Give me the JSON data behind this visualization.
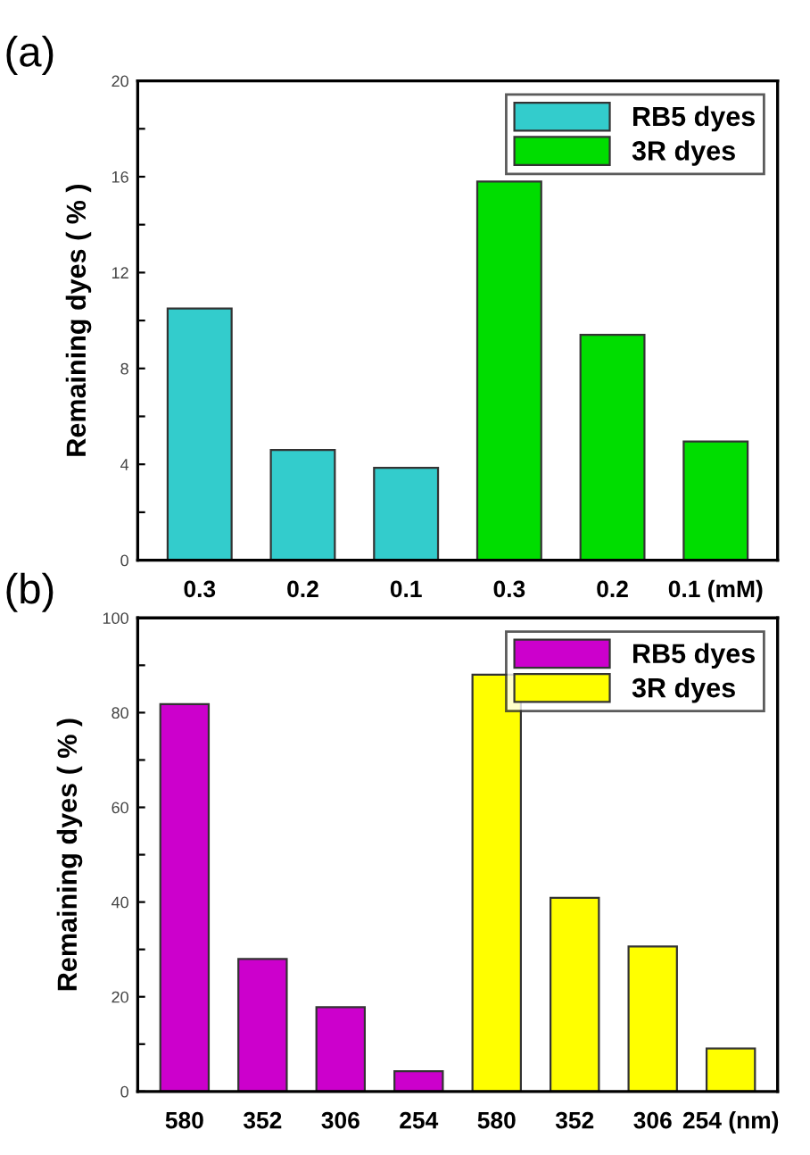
{
  "chart_data": [
    {
      "type": "bar",
      "title": "(a)",
      "ylabel": "Remaining dyes ( % )",
      "categories": [
        "0.3",
        "0.2",
        "0.1",
        "0.3",
        "0.2",
        "0.1 (mM)"
      ],
      "series": [
        {
          "name": "RB5 dyes",
          "color": "#33cccc",
          "values": [
            10.5,
            4.6,
            3.85,
            null,
            null,
            null
          ]
        },
        {
          "name": "3R dyes",
          "color": "#00dd00",
          "values": [
            null,
            null,
            null,
            15.8,
            9.4,
            4.95
          ]
        }
      ],
      "ylim": [
        0,
        20
      ],
      "yticks": [
        0,
        {
          "value": 2,
          "label": null
        },
        4,
        {
          "value": 6,
          "label": null
        },
        8,
        {
          "value": 10,
          "label": null
        },
        12,
        {
          "value": 14,
          "label": null
        },
        16,
        {
          "value": 18,
          "label": null
        },
        20
      ],
      "legend": "top right",
      "grid": false
    },
    {
      "type": "bar",
      "title": "(b)",
      "ylabel": "Remaining dyes ( % )",
      "categories": [
        "580",
        "352",
        "306",
        "254",
        "580",
        "352",
        "306",
        "254 (nm)"
      ],
      "series": [
        {
          "name": "RB5 dyes",
          "color": "#cc00cc",
          "values": [
            81.8,
            28,
            17.8,
            4.3,
            null,
            null,
            null,
            null
          ]
        },
        {
          "name": "3R dyes",
          "color": "#ffff00",
          "values": [
            null,
            null,
            null,
            null,
            88,
            40.9,
            30.6,
            9.1
          ]
        }
      ],
      "ylim": [
        0,
        100
      ],
      "yticks": [
        0,
        {
          "value": 10,
          "label": null
        },
        20,
        {
          "value": 30,
          "label": null
        },
        40,
        {
          "value": 50,
          "label": null
        },
        60,
        {
          "value": 70,
          "label": null
        },
        80,
        {
          "value": 90,
          "label": null
        },
        100
      ],
      "legend": "top right",
      "grid": false
    }
  ]
}
